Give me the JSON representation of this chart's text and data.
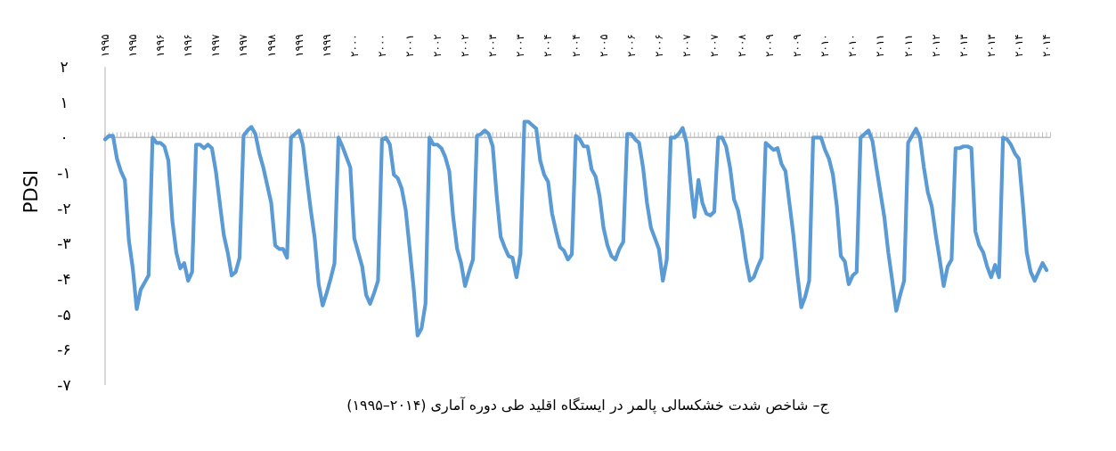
{
  "chart_data": {
    "type": "line",
    "ylabel": "PDSI",
    "annotations": [
      "ج– شاخص شدت خشکسالی پالمر در ایستگاه اقلید طی دوره آماری (۲۰۱۴–۱۹۹۵)"
    ],
    "categories": [
      "۱۹۹۵",
      null,
      null,
      null,
      null,
      null,
      null,
      "۱۹۹۵",
      null,
      null,
      null,
      null,
      null,
      null,
      "۱۹۹۶",
      null,
      null,
      null,
      null,
      null,
      null,
      "۱۹۹۶",
      null,
      null,
      null,
      null,
      null,
      null,
      "۱۹۹۷",
      null,
      null,
      null,
      null,
      null,
      null,
      "۱۹۹۷",
      null,
      null,
      null,
      null,
      null,
      null,
      "۱۹۹۸",
      null,
      null,
      null,
      null,
      null,
      null,
      "۱۹۹۹",
      null,
      null,
      null,
      null,
      null,
      null,
      "۱۹۹۹",
      null,
      null,
      null,
      null,
      null,
      null,
      "۲۰۰۰",
      null,
      null,
      null,
      null,
      null,
      null,
      "۲۰۰۰",
      null,
      null,
      null,
      null,
      null,
      null,
      "۲۰۰۱",
      null,
      null,
      null,
      null,
      null,
      null,
      "۲۰۰۲",
      null,
      null,
      null,
      null,
      null,
      null,
      "۲۰۰۲",
      null,
      null,
      null,
      null,
      null,
      null,
      "۲۰۰۳",
      null,
      null,
      null,
      null,
      null,
      null,
      "۲۰۰۳",
      null,
      null,
      null,
      null,
      null,
      null,
      "۲۰۰۴",
      null,
      null,
      null,
      null,
      null,
      null,
      "۲۰۰۴",
      null,
      null,
      null,
      null,
      null,
      null,
      "۲۰۰۵",
      null,
      null,
      null,
      null,
      null,
      null,
      "۲۰۰۶",
      null,
      null,
      null,
      null,
      null,
      null,
      "۲۰۰۶",
      null,
      null,
      null,
      null,
      null,
      null,
      "۲۰۰۷",
      null,
      null,
      null,
      null,
      null,
      null,
      "۲۰۰۷",
      null,
      null,
      null,
      null,
      null,
      null,
      "۲۰۰۸",
      null,
      null,
      null,
      null,
      null,
      null,
      "۲۰۰۹",
      null,
      null,
      null,
      null,
      null,
      null,
      "۲۰۰۹",
      null,
      null,
      null,
      null,
      null,
      null,
      "۲۰۱۰",
      null,
      null,
      null,
      null,
      null,
      null,
      "۲۰۱۰",
      null,
      null,
      null,
      null,
      null,
      null,
      "۲۰۱۱",
      null,
      null,
      null,
      null,
      null,
      null,
      "۲۰۱۱",
      null,
      null,
      null,
      null,
      null,
      null,
      "۲۰۱۲",
      null,
      null,
      null,
      null,
      null,
      null,
      "۲۰۱۳",
      null,
      null,
      null,
      null,
      null,
      null,
      "۲۰۱۳",
      null,
      null,
      null,
      null,
      null,
      null,
      "۲۰۱۴",
      null,
      null,
      null,
      null,
      null,
      null,
      "۲۰۱۴"
    ],
    "values": [
      -0.05,
      0.05,
      0.05,
      -0.6,
      -0.95,
      -1.2,
      -2.9,
      -3.7,
      -4.85,
      -4.3,
      -4.1,
      -3.9,
      0.0,
      -0.15,
      -0.15,
      -0.25,
      -0.65,
      -2.35,
      -3.25,
      -3.7,
      -3.55,
      -4.05,
      -3.8,
      -0.2,
      -0.2,
      -0.3,
      -0.2,
      -0.3,
      -0.95,
      -1.85,
      -2.75,
      -3.25,
      -3.9,
      -3.8,
      -3.4,
      0.05,
      0.2,
      0.3,
      0.1,
      -0.45,
      -0.85,
      -1.35,
      -1.85,
      -3.05,
      -3.15,
      -3.15,
      -3.4,
      0.0,
      0.1,
      0.2,
      -0.2,
      -1.15,
      -2.05,
      -2.85,
      -4.15,
      -4.75,
      -4.4,
      -4.0,
      -3.55,
      0.0,
      -0.25,
      -0.55,
      -0.85,
      -2.85,
      -3.25,
      -3.65,
      -4.45,
      -4.7,
      -4.4,
      -4.05,
      -0.05,
      0.0,
      -0.2,
      -1.05,
      -1.15,
      -1.45,
      -2.05,
      -3.15,
      -4.25,
      -5.6,
      -5.4,
      -4.7,
      0.0,
      -0.2,
      -0.2,
      -0.3,
      -0.55,
      -0.95,
      -2.25,
      -3.15,
      -3.55,
      -4.2,
      -3.8,
      -3.45,
      0.05,
      0.1,
      0.2,
      0.1,
      -0.25,
      -1.65,
      -2.8,
      -3.1,
      -3.35,
      -3.4,
      -3.95,
      -3.3,
      0.45,
      0.45,
      0.35,
      0.25,
      -0.65,
      -1.05,
      -1.25,
      -2.15,
      -2.65,
      -3.1,
      -3.2,
      -3.45,
      -3.3,
      0.05,
      -0.05,
      -0.25,
      -0.25,
      -0.9,
      -1.1,
      -1.65,
      -2.55,
      -3.05,
      -3.35,
      -3.45,
      -3.15,
      -2.95,
      0.1,
      0.1,
      -0.05,
      -0.15,
      -0.85,
      -1.85,
      -2.55,
      -2.85,
      -3.15,
      -4.05,
      -3.45,
      0.0,
      0.0,
      0.1,
      0.27,
      -0.15,
      -1.25,
      -2.25,
      -1.2,
      -1.85,
      -2.15,
      -2.2,
      -2.1,
      0.0,
      0.0,
      -0.25,
      -0.85,
      -1.75,
      -2.05,
      -2.65,
      -3.45,
      -4.05,
      -3.95,
      -3.65,
      -3.4,
      -0.15,
      -0.25,
      -0.35,
      -0.3,
      -0.75,
      -0.95,
      -1.85,
      -2.75,
      -3.85,
      -4.8,
      -4.5,
      -4.05,
      0.0,
      0.0,
      0.0,
      -0.35,
      -0.6,
      -1.05,
      -1.95,
      -3.35,
      -3.5,
      -4.15,
      -3.9,
      -3.8,
      0.0,
      0.1,
      0.2,
      -0.1,
      -0.85,
      -1.55,
      -2.25,
      -3.25,
      -4.05,
      -4.9,
      -4.45,
      -4.05,
      -0.15,
      0.05,
      0.25,
      0.0,
      -0.85,
      -1.55,
      -1.95,
      -2.75,
      -3.45,
      -4.2,
      -3.65,
      -3.45,
      -0.3,
      -0.3,
      -0.25,
      -0.25,
      -0.3,
      -2.65,
      -3.05,
      -3.25,
      -3.65,
      -3.95,
      -3.6,
      -3.95,
      0.0,
      -0.05,
      -0.2,
      -0.45,
      -0.6,
      -1.85,
      -3.25,
      -3.8,
      -4.05,
      -3.8,
      -3.55,
      -3.75
    ],
    "color": "#5b9bd5",
    "ylim": [
      -7,
      2
    ],
    "yticks": [
      {
        "value": 2,
        "label": "۲"
      },
      {
        "value": 1,
        "label": "۱"
      },
      {
        "value": 0,
        "label": "۰"
      },
      {
        "value": -1,
        "label": "-۱"
      },
      {
        "value": -2,
        "label": "-۲"
      },
      {
        "value": -3,
        "label": "-۳"
      },
      {
        "value": -4,
        "label": "-۴"
      },
      {
        "value": -5,
        "label": "-۵"
      },
      {
        "value": -6,
        "label": "-۶"
      },
      {
        "value": -7,
        "label": "-۷"
      }
    ],
    "legend": false,
    "marker": "none",
    "line_style": "solid"
  }
}
